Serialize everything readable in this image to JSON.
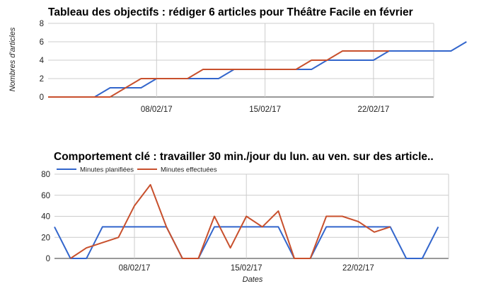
{
  "chart_data": [
    {
      "type": "line",
      "title": "Tableau des objectifs : rédiger 6 articles pour Théâtre Facile en février",
      "ylabel": "Nombres d'articles",
      "xlabel": "",
      "ylim": [
        0,
        8
      ],
      "yticks": [
        0,
        2,
        4,
        6,
        8
      ],
      "x_tick_labels": [
        "08/02/17",
        "15/02/17",
        "22/02/17"
      ],
      "x_start": "2017-02-01",
      "grid": true,
      "legend": "none",
      "colors": [
        "#3366cc",
        "#c8502d"
      ],
      "series": [
        {
          "name": "",
          "values": [
            0,
            0,
            0,
            0,
            1,
            1,
            1,
            2,
            2,
            2,
            2,
            2,
            3,
            3,
            3,
            3,
            3,
            3,
            4,
            4,
            4,
            4,
            5,
            5,
            5,
            5,
            5,
            6
          ]
        },
        {
          "name": "",
          "values": [
            0,
            0,
            0,
            0,
            0,
            1,
            2,
            2,
            2,
            2,
            3,
            3,
            3,
            3,
            3,
            3,
            3,
            4,
            4,
            5,
            5,
            5,
            5,
            null,
            null,
            null,
            null,
            null
          ]
        }
      ]
    },
    {
      "type": "line",
      "title": "Comportement clé : travailler 30 min./jour du lun. au ven. sur des article..",
      "xlabel": "Dates",
      "ylabel": "",
      "ylim": [
        0,
        80
      ],
      "yticks": [
        0,
        20,
        40,
        60,
        80
      ],
      "x_tick_labels": [
        "08/02/17",
        "15/02/17",
        "22/02/17"
      ],
      "x_start": "2017-02-01",
      "grid": true,
      "legend": "top-left",
      "colors": [
        "#3366cc",
        "#c8502d"
      ],
      "series": [
        {
          "name": "Minutes planifiées",
          "values": [
            30,
            0,
            0,
            30,
            30,
            30,
            30,
            30,
            0,
            0,
            30,
            30,
            30,
            30,
            30,
            0,
            0,
            30,
            30,
            30,
            30,
            30,
            0,
            0,
            30
          ]
        },
        {
          "name": "Minutes effectuées",
          "values": [
            null,
            0,
            10,
            15,
            20,
            50,
            70,
            30,
            0,
            0,
            40,
            10,
            40,
            30,
            45,
            0,
            0,
            40,
            40,
            35,
            25,
            30,
            null,
            null,
            null
          ]
        }
      ]
    }
  ]
}
